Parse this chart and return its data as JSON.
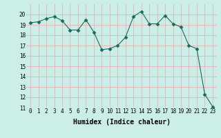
{
  "x": [
    0,
    1,
    2,
    3,
    4,
    5,
    6,
    7,
    8,
    9,
    10,
    11,
    12,
    13,
    14,
    15,
    16,
    17,
    18,
    19,
    20,
    21,
    22,
    23
  ],
  "y": [
    19.2,
    19.3,
    19.6,
    19.8,
    19.4,
    18.5,
    18.5,
    19.5,
    18.3,
    16.6,
    16.7,
    17.0,
    17.8,
    19.8,
    20.3,
    19.1,
    19.1,
    19.9,
    19.1,
    18.8,
    17.0,
    16.7,
    12.3,
    11.1
  ],
  "xlabel": "Humidex (Indice chaleur)",
  "ylim": [
    11,
    21
  ],
  "xlim": [
    -0.5,
    23.5
  ],
  "line_color": "#1a6b5a",
  "marker": "D",
  "marker_size": 2.5,
  "bg_color": "#cceee8",
  "grid_color": "#e8b0b0",
  "yticks": [
    11,
    12,
    13,
    14,
    15,
    16,
    17,
    18,
    19,
    20
  ],
  "xticks": [
    0,
    1,
    2,
    3,
    4,
    5,
    6,
    7,
    8,
    9,
    10,
    11,
    12,
    13,
    14,
    15,
    16,
    17,
    18,
    19,
    20,
    21,
    22,
    23
  ],
  "tick_fontsize": 5.5,
  "xlabel_fontsize": 7
}
